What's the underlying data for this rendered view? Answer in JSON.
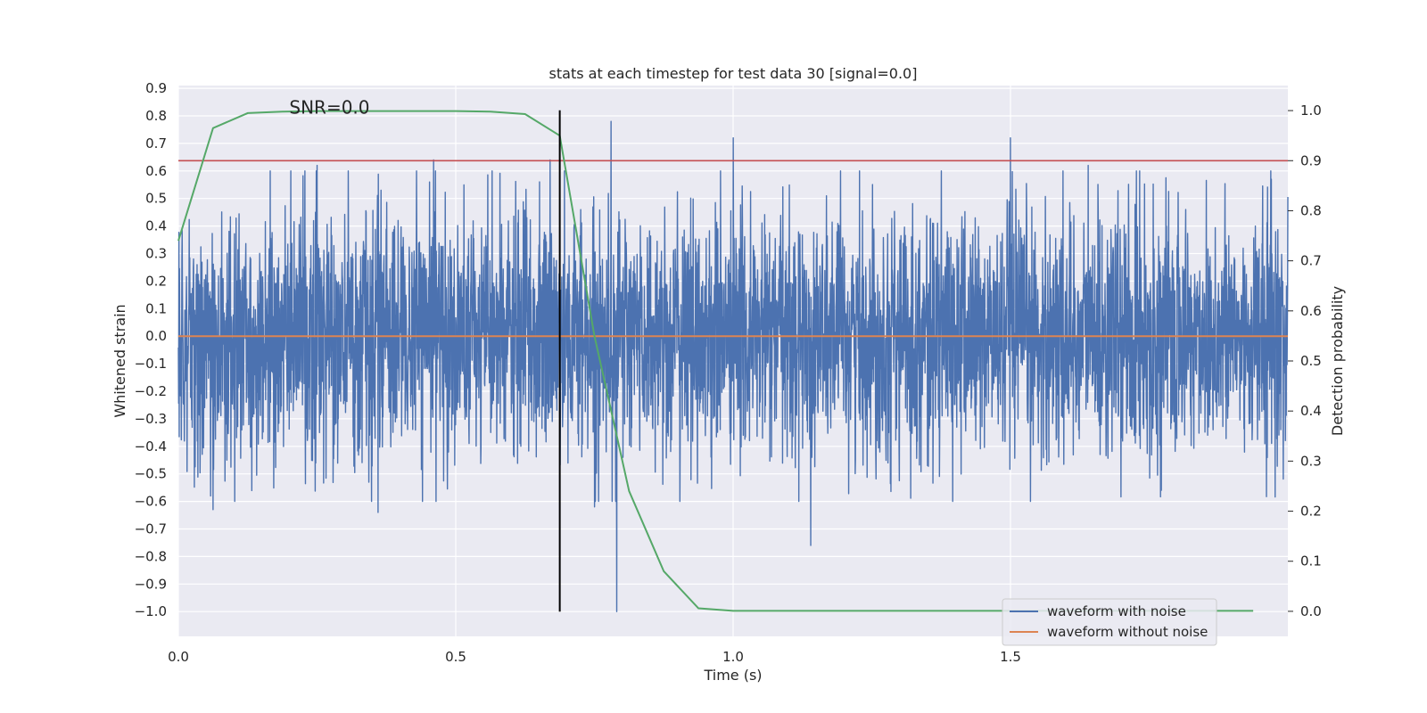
{
  "chart_data": {
    "type": "line",
    "title": "stats at each timestep for test data 30 [signal=0.0]",
    "xlabel": "Time (s)",
    "ylabel": "Whitened strain",
    "y2label": "Detection probability",
    "xlim": [
      0.0,
      2.0
    ],
    "ylim": [
      -1.09,
      0.91
    ],
    "y2lim": [
      -0.05,
      1.05
    ],
    "xticks": [
      0.0,
      0.5,
      1.0,
      1.5
    ],
    "xtick_labels": [
      "0.0",
      "0.5",
      "1.0",
      "1.5"
    ],
    "yticks": [
      0.9,
      0.8,
      0.7,
      0.6,
      0.5,
      0.4,
      0.3,
      0.2,
      0.1,
      0.0,
      -0.1,
      -0.2,
      -0.3,
      -0.4,
      -0.5,
      -0.6,
      -0.7,
      -0.8,
      -0.9,
      -1.0
    ],
    "ytick_labels": [
      "0.9",
      "0.8",
      "0.7",
      "0.6",
      "0.5",
      "0.4",
      "0.3",
      "0.2",
      "0.1",
      "0.0",
      "−0.1",
      "−0.2",
      "−0.3",
      "−0.4",
      "−0.5",
      "−0.6",
      "−0.7",
      "−0.8",
      "−0.9",
      "−1.0"
    ],
    "y2ticks": [
      1.0,
      0.9,
      0.8,
      0.7,
      0.6,
      0.5,
      0.4,
      0.3,
      0.2,
      0.1,
      0.0
    ],
    "y2tick_labels": [
      "1.0",
      "0.9",
      "0.8",
      "0.7",
      "0.6",
      "0.5",
      "0.4",
      "0.3",
      "0.2",
      "0.1",
      "0.0"
    ],
    "annotation": "SNR=0.0",
    "annotation_position": {
      "x": 0.2,
      "y": 0.83
    },
    "threshold": {
      "axis": "y2",
      "value": 0.9,
      "color": "#c44e52"
    },
    "marker_line": {
      "x": 0.6875,
      "y_from": -1.0,
      "y_to": 0.82,
      "color": "#000000"
    },
    "series": [
      {
        "name": "waveform with noise",
        "axis": "y",
        "color": "#4c72b0",
        "x_range": [
          0.0,
          2.0
        ],
        "num_samples": 4096,
        "std": 0.22,
        "spikes": [
          [
            0.0625,
            0.82
          ],
          [
            0.0625,
            -0.63
          ],
          [
            0.79,
            -1.0
          ],
          [
            0.78,
            0.78
          ],
          [
            1.0,
            0.72
          ],
          [
            1.5,
            0.72
          ],
          [
            0.36,
            -0.64
          ],
          [
            0.46,
            0.64
          ],
          [
            0.25,
            0.62
          ],
          [
            0.67,
            0.64
          ],
          [
            1.14,
            -0.76
          ],
          [
            0.75,
            -0.62
          ],
          [
            1.64,
            0.62
          ],
          [
            1.97,
            0.57
          ]
        ]
      },
      {
        "name": "waveform without noise",
        "axis": "y",
        "color": "#dd8452",
        "x": [
          0.0,
          2.0
        ],
        "y": [
          0.0,
          0.0
        ]
      },
      {
        "name": "Detection probability",
        "axis": "y2",
        "color": "#55a868",
        "x": [
          0.0,
          0.0625,
          0.125,
          0.1875,
          0.25,
          0.3125,
          0.375,
          0.4375,
          0.5,
          0.5625,
          0.625,
          0.6875,
          0.75,
          0.8125,
          0.875,
          0.9375,
          1.0,
          1.0625,
          1.125,
          1.1875,
          1.25,
          1.3125,
          1.375,
          1.4375,
          1.5,
          1.5625,
          1.625,
          1.6875,
          1.75,
          1.8125,
          1.875,
          1.9375
        ],
        "y": [
          0.74,
          0.965,
          0.995,
          0.998,
          0.999,
          0.999,
          0.999,
          0.999,
          0.999,
          0.998,
          0.993,
          0.95,
          0.55,
          0.24,
          0.08,
          0.006,
          0.001,
          0.001,
          0.001,
          0.001,
          0.001,
          0.001,
          0.001,
          0.001,
          0.001,
          0.001,
          0.001,
          0.001,
          0.001,
          0.001,
          0.001,
          0.001
        ]
      }
    ],
    "legend": [
      "waveform with noise",
      "waveform without noise"
    ],
    "legend_position": "lower-right",
    "grid": true,
    "background": "#eaeaf2"
  }
}
